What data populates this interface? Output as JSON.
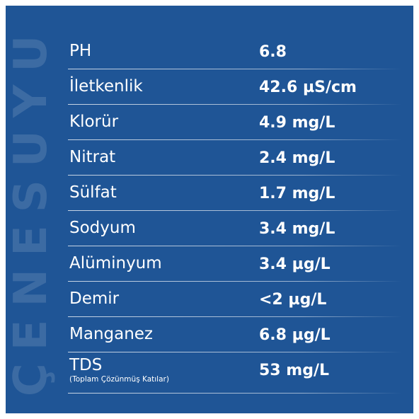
{
  "brand_vertical_text": "ÇENESUYU",
  "rows": [
    {
      "label": "PH",
      "value": "6.8"
    },
    {
      "label": "İletkenlik",
      "value": "42.6 µS/cm"
    },
    {
      "label": "Klorür",
      "value": "4.9 mg/L"
    },
    {
      "label": "Nitrat",
      "value": "2.4 mg/L"
    },
    {
      "label": "Sülfat",
      "value": "1.7 mg/L"
    },
    {
      "label": "Sodyum",
      "value": "3.4 mg/L"
    },
    {
      "label": "Alüminyum",
      "value": "3.4 µg/L"
    },
    {
      "label": "Demir",
      "value": "<2 µg/L"
    },
    {
      "label": "Manganez",
      "value": "6.8 µg/L"
    },
    {
      "label": "TDS",
      "sublabel": "(Toplam Çözünmüş Katılar)",
      "value": "53 mg/L"
    }
  ],
  "colors": {
    "background": "#1f5596",
    "text": "#ffffff"
  }
}
